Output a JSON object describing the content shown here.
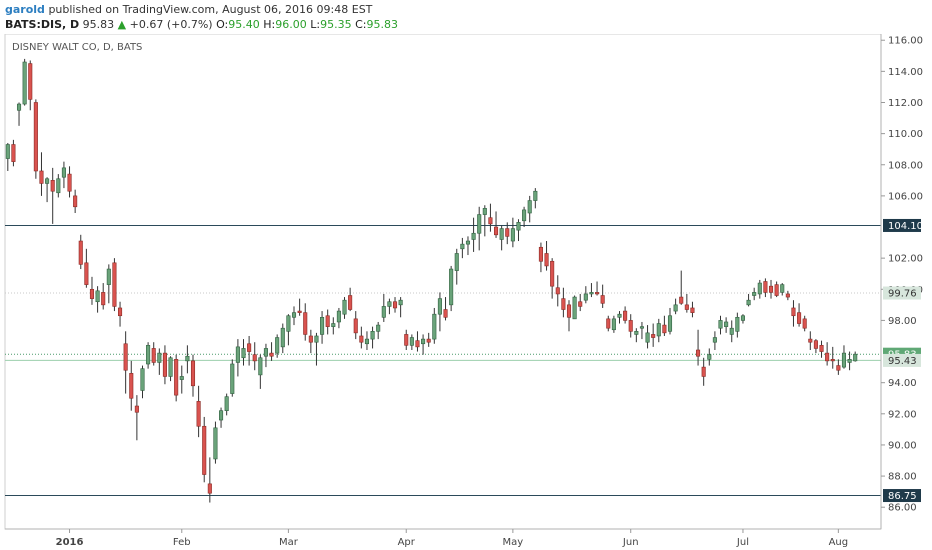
{
  "header": {
    "author": "garold",
    "published_text": "published on TradingView.com, August 06, 2016 09:48 EST",
    "symbol": "BATS:DIS, D",
    "last_price": "95.83",
    "change_arrow": "▲",
    "change": "+0.67 (+0.7%)",
    "o_label": "O:",
    "o_value": "95.40",
    "h_label": "H:",
    "h_value": "96.00",
    "l_label": "L:",
    "l_value": "95.35",
    "c_label": "C:",
    "c_value": "95.83"
  },
  "chart_data": {
    "type": "candlestick",
    "title": "DISNEY WALT CO, D, BATS",
    "ylim": [
      84.6,
      116.4
    ],
    "yticks": [
      "116.00",
      "114.00",
      "112.00",
      "110.00",
      "108.00",
      "106.00",
      "102.00",
      "100.00",
      "98.00",
      "94.00",
      "92.00",
      "90.00",
      "88.00",
      "86.00"
    ],
    "xticks": [
      {
        "label": "2016",
        "bold": true,
        "bar": 11
      },
      {
        "label": "Feb",
        "bold": false,
        "bar": 31
      },
      {
        "label": "Mar",
        "bold": false,
        "bar": 50
      },
      {
        "label": "Apr",
        "bold": false,
        "bar": 71
      },
      {
        "label": "May",
        "bold": false,
        "bar": 90
      },
      {
        "label": "Jun",
        "bold": false,
        "bar": 111
      },
      {
        "label": "Jul",
        "bold": false,
        "bar": 131
      },
      {
        "label": "Aug",
        "bold": false,
        "bar": 148
      }
    ],
    "levels": [
      {
        "value": 104.1,
        "label": "104.10",
        "style": "solid",
        "color": "#2b4a5a",
        "tag_bg": "#1f3a4a",
        "tag_fg": "#ffffff"
      },
      {
        "value": 99.76,
        "label": "99.76",
        "style": "dotted",
        "color": "#c9c9c9",
        "tag_bg": "#d7e6dc",
        "tag_fg": "#333333"
      },
      {
        "value": 95.83,
        "label": "95.83",
        "style": "dotted",
        "color": "#4a9a6a",
        "tag_bg": "#5fa875",
        "tag_fg": "#ffffff"
      },
      {
        "value": 95.43,
        "label": "95.43",
        "style": "solid",
        "color": "#9ccfad",
        "tag_bg": "#d7e6dc",
        "tag_fg": "#333333"
      },
      {
        "value": 86.75,
        "label": "86.75",
        "style": "solid",
        "color": "#2b4a5a",
        "tag_bg": "#1f3a4a",
        "tag_fg": "#ffffff"
      }
    ],
    "colors": {
      "up": "#6aa37a",
      "down": "#d9534f",
      "up_edge": "#2f5f3f",
      "down_edge": "#8a2a25"
    },
    "ohlc": [
      [
        108.4,
        109.4,
        107.6,
        109.3
      ],
      [
        109.3,
        109.6,
        107.9,
        108.2
      ],
      [
        111.5,
        112.0,
        110.5,
        111.9
      ],
      [
        111.9,
        114.8,
        111.8,
        114.6
      ],
      [
        114.5,
        114.7,
        111.5,
        112.2
      ],
      [
        112.0,
        112.2,
        107.1,
        107.6
      ],
      [
        107.6,
        108.8,
        106.0,
        106.8
      ],
      [
        106.8,
        107.2,
        105.6,
        107.1
      ],
      [
        107.0,
        107.8,
        104.2,
        106.3
      ],
      [
        106.2,
        107.4,
        105.9,
        107.1
      ],
      [
        107.2,
        108.2,
        106.5,
        107.8
      ],
      [
        107.4,
        107.9,
        105.9,
        106.3
      ],
      [
        106.0,
        106.4,
        104.9,
        105.3
      ],
      [
        103.1,
        103.5,
        101.3,
        101.6
      ],
      [
        101.7,
        102.6,
        100.1,
        100.3
      ],
      [
        100.0,
        100.8,
        99.0,
        99.4
      ],
      [
        99.2,
        100.2,
        98.5,
        99.9
      ],
      [
        99.8,
        100.4,
        98.7,
        99.0
      ],
      [
        100.3,
        101.6,
        99.1,
        101.3
      ],
      [
        101.7,
        102.0,
        98.6,
        98.9
      ],
      [
        98.8,
        99.2,
        97.6,
        98.3
      ],
      [
        96.5,
        97.3,
        93.3,
        94.8
      ],
      [
        94.6,
        95.4,
        92.2,
        93.0
      ],
      [
        92.5,
        93.2,
        90.3,
        92.1
      ],
      [
        93.5,
        95.1,
        93.0,
        94.9
      ],
      [
        95.2,
        96.6,
        94.9,
        96.4
      ],
      [
        96.2,
        96.6,
        95.1,
        95.3
      ],
      [
        95.3,
        96.2,
        94.5,
        95.9
      ],
      [
        95.9,
        96.4,
        93.9,
        94.4
      ],
      [
        94.4,
        95.7,
        94.1,
        95.6
      ],
      [
        95.5,
        95.8,
        92.8,
        93.2
      ],
      [
        94.2,
        95.1,
        93.3,
        94.4
      ],
      [
        95.4,
        96.4,
        94.6,
        95.7
      ],
      [
        95.4,
        95.8,
        93.1,
        93.8
      ],
      [
        92.8,
        93.8,
        90.5,
        91.2
      ],
      [
        91.2,
        91.8,
        87.6,
        88.1
      ],
      [
        87.5,
        89.2,
        86.3,
        86.9
      ],
      [
        89.1,
        91.5,
        88.8,
        91.1
      ],
      [
        91.6,
        92.4,
        91.1,
        92.2
      ],
      [
        92.2,
        93.3,
        91.9,
        93.1
      ],
      [
        93.3,
        95.5,
        93.1,
        95.2
      ],
      [
        95.3,
        96.8,
        94.4,
        96.3
      ],
      [
        95.6,
        96.8,
        95.1,
        96.2
      ],
      [
        96.5,
        97.0,
        95.1,
        96.0
      ],
      [
        95.8,
        96.6,
        94.8,
        95.4
      ],
      [
        94.5,
        95.8,
        93.6,
        95.6
      ],
      [
        95.7,
        96.5,
        95.0,
        96.2
      ],
      [
        95.9,
        96.6,
        95.4,
        95.7
      ],
      [
        95.9,
        97.1,
        95.6,
        96.9
      ],
      [
        96.3,
        97.8,
        95.9,
        97.5
      ],
      [
        97.3,
        98.4,
        96.4,
        98.3
      ],
      [
        98.2,
        98.9,
        97.7,
        98.5
      ],
      [
        98.6,
        99.4,
        98.3,
        98.5
      ],
      [
        98.5,
        99.1,
        96.7,
        97.1
      ],
      [
        97.0,
        97.4,
        95.9,
        96.6
      ],
      [
        96.6,
        97.2,
        95.1,
        97.0
      ],
      [
        97.1,
        98.6,
        96.5,
        98.2
      ],
      [
        98.3,
        98.7,
        97.1,
        97.6
      ],
      [
        97.6,
        98.2,
        97.1,
        97.8
      ],
      [
        97.9,
        98.8,
        97.5,
        98.6
      ],
      [
        98.4,
        99.5,
        98.1,
        99.3
      ],
      [
        99.6,
        100.1,
        98.6,
        98.7
      ],
      [
        98.1,
        98.6,
        96.8,
        97.2
      ],
      [
        97.0,
        97.6,
        96.2,
        96.6
      ],
      [
        96.5,
        97.3,
        96.1,
        96.8
      ],
      [
        96.8,
        97.6,
        96.2,
        97.3
      ],
      [
        97.3,
        97.9,
        96.8,
        97.7
      ],
      [
        98.2,
        99.7,
        97.9,
        98.9
      ],
      [
        98.9,
        99.4,
        98.4,
        99.2
      ],
      [
        99.2,
        99.5,
        98.5,
        98.8
      ],
      [
        99.0,
        99.5,
        98.2,
        99.3
      ],
      [
        97.1,
        97.4,
        96.1,
        96.4
      ],
      [
        96.4,
        97.1,
        96.1,
        96.9
      ],
      [
        96.7,
        97.3,
        96.0,
        96.3
      ],
      [
        96.5,
        97.1,
        95.8,
        96.8
      ],
      [
        96.8,
        97.2,
        96.3,
        96.6
      ],
      [
        96.8,
        98.8,
        96.5,
        98.4
      ],
      [
        98.4,
        99.8,
        97.3,
        99.4
      ],
      [
        98.7,
        99.5,
        98.0,
        98.2
      ],
      [
        99.0,
        101.5,
        98.6,
        101.3
      ],
      [
        101.2,
        102.6,
        100.3,
        102.3
      ],
      [
        102.6,
        103.3,
        102.0,
        102.9
      ],
      [
        102.9,
        103.4,
        102.2,
        103.1
      ],
      [
        103.2,
        104.6,
        102.4,
        103.6
      ],
      [
        103.6,
        105.3,
        102.5,
        104.8
      ],
      [
        104.8,
        105.4,
        103.4,
        105.2
      ],
      [
        104.6,
        105.5,
        103.7,
        104.2
      ],
      [
        104.0,
        105.0,
        103.3,
        103.5
      ],
      [
        103.2,
        104.1,
        102.5,
        103.9
      ],
      [
        103.9,
        104.3,
        102.9,
        103.4
      ],
      [
        103.1,
        104.6,
        102.7,
        103.9
      ],
      [
        103.8,
        104.5,
        103.1,
        104.3
      ],
      [
        104.4,
        105.3,
        104.0,
        105.1
      ],
      [
        104.9,
        106.0,
        104.3,
        105.7
      ],
      [
        105.7,
        106.5,
        105.2,
        106.3
      ],
      [
        102.7,
        103.0,
        101.1,
        101.8
      ],
      [
        102.3,
        103.1,
        101.2,
        101.5
      ],
      [
        101.8,
        102.0,
        99.4,
        100.2
      ],
      [
        100.1,
        100.9,
        98.9,
        99.7
      ],
      [
        99.4,
        100.1,
        98.2,
        98.7
      ],
      [
        99.0,
        99.3,
        97.3,
        98.2
      ],
      [
        98.1,
        99.6,
        98.1,
        99.5
      ],
      [
        99.2,
        99.7,
        98.6,
        98.9
      ],
      [
        99.3,
        100.2,
        99.1,
        99.7
      ],
      [
        99.7,
        100.4,
        99.5,
        99.8
      ],
      [
        99.8,
        100.5,
        99.6,
        99.7
      ],
      [
        99.6,
        100.3,
        98.8,
        99.1
      ],
      [
        98.1,
        98.3,
        97.3,
        97.5
      ],
      [
        97.4,
        98.3,
        97.2,
        98.1
      ],
      [
        98.2,
        98.6,
        97.8,
        98.4
      ],
      [
        98.6,
        98.9,
        97.8,
        98.0
      ],
      [
        98.0,
        98.4,
        96.9,
        97.3
      ],
      [
        97.1,
        97.5,
        96.6,
        97.3
      ],
      [
        97.5,
        97.9,
        96.8,
        97.6
      ],
      [
        96.6,
        97.7,
        96.2,
        97.2
      ],
      [
        97.1,
        97.8,
        96.3,
        96.9
      ],
      [
        97.0,
        98.1,
        96.6,
        97.8
      ],
      [
        97.7,
        98.3,
        97.0,
        97.2
      ],
      [
        97.3,
        98.8,
        97.1,
        98.3
      ],
      [
        98.6,
        99.4,
        98.4,
        99.0
      ],
      [
        99.5,
        101.2,
        99.0,
        99.1
      ],
      [
        99.0,
        99.7,
        98.5,
        98.7
      ],
      [
        98.8,
        99.2,
        98.2,
        98.5
      ],
      [
        96.1,
        97.4,
        95.1,
        95.7
      ],
      [
        95.0,
        95.6,
        93.8,
        94.4
      ],
      [
        95.5,
        96.2,
        95.1,
        95.8
      ],
      [
        96.6,
        97.3,
        96.1,
        96.9
      ],
      [
        97.5,
        98.3,
        97.1,
        98.0
      ],
      [
        97.6,
        98.2,
        97.2,
        97.9
      ],
      [
        97.1,
        98.0,
        96.6,
        97.5
      ],
      [
        97.3,
        98.5,
        96.9,
        98.2
      ],
      [
        98.0,
        98.4,
        97.8,
        98.3
      ],
      [
        99.0,
        99.7,
        98.9,
        99.3
      ],
      [
        99.6,
        100.1,
        99.3,
        99.8
      ],
      [
        99.7,
        100.6,
        99.4,
        100.4
      ],
      [
        100.5,
        100.7,
        99.5,
        99.8
      ],
      [
        100.2,
        100.6,
        99.4,
        99.8
      ],
      [
        100.3,
        100.5,
        99.5,
        99.6
      ],
      [
        99.8,
        100.4,
        99.6,
        100.3
      ],
      [
        99.7,
        99.9,
        99.3,
        99.5
      ],
      [
        98.8,
        99.3,
        97.6,
        98.3
      ],
      [
        98.5,
        99.1,
        97.6,
        97.8
      ],
      [
        98.1,
        98.3,
        97.3,
        97.5
      ],
      [
        96.8,
        97.3,
        96.1,
        96.6
      ],
      [
        96.7,
        96.8,
        95.9,
        96.2
      ],
      [
        96.4,
        96.7,
        95.6,
        96.0
      ],
      [
        95.9,
        96.6,
        95.1,
        95.4
      ],
      [
        95.5,
        96.3,
        94.9,
        95.4
      ],
      [
        95.1,
        95.5,
        94.5,
        94.8
      ],
      [
        95.0,
        96.4,
        94.9,
        95.9
      ],
      [
        95.3,
        96.0,
        94.8,
        95.5
      ],
      [
        95.4,
        96.0,
        95.35,
        95.83
      ]
    ]
  }
}
